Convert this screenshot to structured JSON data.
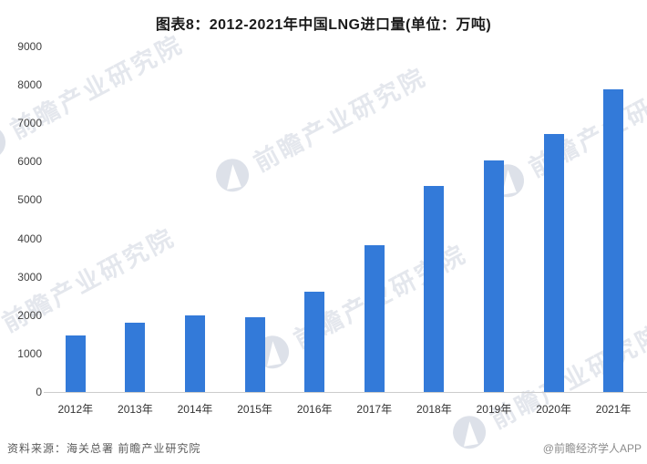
{
  "header": {
    "title": "图表8：2012-2021年中国LNG进口量(单位：万吨)"
  },
  "chart_data": {
    "type": "bar",
    "title": "图表8：2012-2021年中国LNG进口量(单位：万吨)",
    "unit": "万吨",
    "categories": [
      "2012年",
      "2013年",
      "2014年",
      "2015年",
      "2016年",
      "2017年",
      "2018年",
      "2019年",
      "2020年",
      "2021年"
    ],
    "values": [
      1468,
      1806,
      1989,
      1946,
      2606,
      3813,
      5378,
      6025,
      6713,
      7893
    ],
    "xlabel": "",
    "ylabel": "",
    "ylim": [
      0,
      9000
    ],
    "ytick_step": 1000,
    "grid": false,
    "legend_position": "none",
    "bar_color": "#337ad9"
  },
  "watermark": {
    "label": "前瞻产业研究院"
  },
  "footer": {
    "source": "资料来源：海关总署 前瞻产业研究院",
    "credit": "@前瞻经济学人APP"
  },
  "colors": {
    "bar": "#337ad9",
    "axis_line": "#cccccc",
    "title_text": "#1a1a1a",
    "tick_text": "#333333",
    "source_text": "#595959",
    "credit_text": "#8c8c8c",
    "watermark": "#e4e7ed"
  }
}
